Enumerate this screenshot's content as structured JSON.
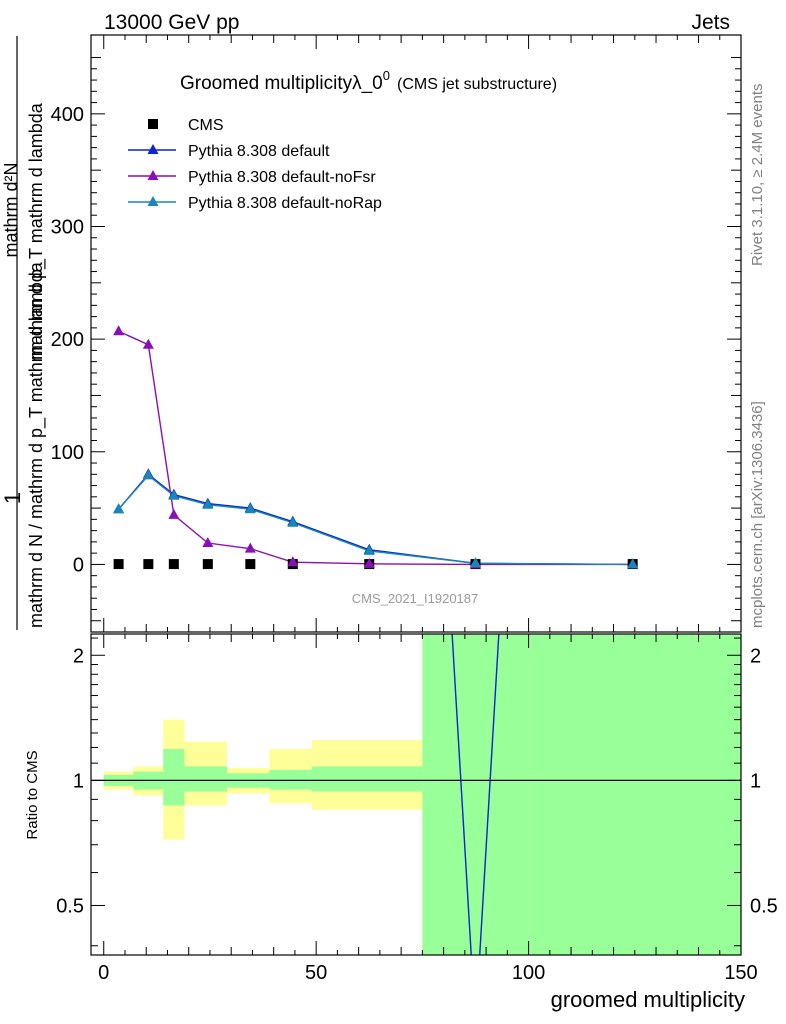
{
  "header": {
    "left": "13000 GeV pp",
    "right": "Jets"
  },
  "side_labels": {
    "rivet": "Rivet 3.1.10, ≥ 2.4M events",
    "mcplots": "mcplots.cern.ch [arXiv:1306.3436]"
  },
  "watermark": "CMS_2021_I1920187",
  "chart_data": [
    {
      "type": "line",
      "title": "Groomed multiplicityλ_0",
      "title_sup": "0",
      "title_note": "(CMS jet substructure)",
      "ylabel_num": "1",
      "ylabel_denom": "mathrm d N / mathrm d p_T mathrm d lambda",
      "ylabel_top": "mathrm d²N",
      "ylabel_bottom": "mathrm d p_T mathrm d lambda",
      "ylim": [
        -60,
        470
      ],
      "xlim": [
        -3,
        150
      ],
      "y_ticks": [
        0,
        100,
        200,
        300,
        400
      ],
      "legend_position": "top-left",
      "series": [
        {
          "name": "CMS",
          "color": "#000000",
          "marker": "square",
          "points": [
            [
              3.5,
              0.3
            ],
            [
              10.5,
              0.3
            ],
            [
              16.5,
              0.3
            ],
            [
              24.5,
              0.3
            ],
            [
              34.5,
              0.3
            ],
            [
              44.5,
              0.3
            ],
            [
              62.5,
              0.3
            ],
            [
              87.5,
              0.3
            ],
            [
              124.5,
              0.3
            ]
          ]
        },
        {
          "name": "Pythia 8.308 default",
          "color": "#0b24cc",
          "marker": "triangle",
          "points": [
            [
              3.5,
              49
            ],
            [
              10.5,
              80
            ],
            [
              16.5,
              62
            ],
            [
              24.5,
              54
            ],
            [
              34.5,
              50
            ],
            [
              44.5,
              38
            ],
            [
              62.5,
              13
            ],
            [
              87.5,
              1
            ],
            [
              124.5,
              0
            ]
          ]
        },
        {
          "name": "Pythia 8.308 default-noFsr",
          "color": "#8a0fb8",
          "marker": "triangle",
          "points": [
            [
              3.5,
              207
            ],
            [
              10.5,
              195
            ],
            [
              16.5,
              44
            ],
            [
              24.5,
              19
            ],
            [
              34.5,
              14
            ],
            [
              44.5,
              2
            ],
            [
              62.5,
              0.5
            ],
            [
              87.5,
              0
            ],
            [
              124.5,
              0
            ]
          ]
        },
        {
          "name": "Pythia 8.308 default-noRap",
          "color": "#1a86b8",
          "marker": "triangle",
          "points": [
            [
              3.5,
              49
            ],
            [
              10.5,
              79
            ],
            [
              16.5,
              61
            ],
            [
              24.5,
              53
            ],
            [
              34.5,
              49
            ],
            [
              44.5,
              37
            ],
            [
              62.5,
              12
            ],
            [
              87.5,
              1
            ],
            [
              124.5,
              0
            ]
          ]
        }
      ]
    },
    {
      "type": "area",
      "ylabel": "Ratio to CMS",
      "xlabel": "groomed multiplicity",
      "xlim": [
        -3,
        150
      ],
      "ylim": [
        0.38,
        2.25
      ],
      "y_ticks": [
        0.5,
        1,
        2
      ],
      "x_ticks": [
        0,
        50,
        100,
        150
      ],
      "colors": {
        "stat_band": "#99ff99",
        "total_band": "#ffff99",
        "reference_line": "#000000"
      },
      "bins": [
        {
          "x": [
            0,
            7
          ],
          "stat": [
            0.97,
            1.03
          ],
          "total": [
            0.95,
            1.05
          ]
        },
        {
          "x": [
            7,
            14
          ],
          "stat": [
            0.95,
            1.05
          ],
          "total": [
            0.92,
            1.08
          ]
        },
        {
          "x": [
            14,
            19
          ],
          "stat": [
            0.87,
            1.19
          ],
          "total": [
            0.72,
            1.4
          ]
        },
        {
          "x": [
            19,
            29
          ],
          "stat": [
            0.94,
            1.08
          ],
          "total": [
            0.87,
            1.24
          ]
        },
        {
          "x": [
            29,
            39
          ],
          "stat": [
            0.96,
            1.04
          ],
          "total": [
            0.93,
            1.07
          ]
        },
        {
          "x": [
            39,
            49
          ],
          "stat": [
            0.95,
            1.06
          ],
          "total": [
            0.88,
            1.19
          ]
        },
        {
          "x": [
            49,
            75
          ],
          "stat": [
            0.94,
            1.08
          ],
          "total": [
            0.85,
            1.25
          ]
        },
        {
          "x": [
            75,
            100
          ],
          "stat": [
            0.38,
            2.25
          ],
          "total": [
            0.38,
            2.25
          ]
        },
        {
          "x": [
            100,
            150
          ],
          "stat": [
            0.38,
            2.25
          ],
          "total": [
            0.38,
            2.25
          ]
        }
      ],
      "ratio_series": [
        {
          "name": "Pythia 8.308 default",
          "color": "#0b24cc",
          "points": [
            [
              82,
              2.25
            ],
            [
              86.5,
              0.38
            ]
          ]
        },
        {
          "name": "Pythia 8.308 default",
          "color": "#0b24cc",
          "points": [
            [
              88.5,
              0.38
            ],
            [
              93,
              2.25
            ]
          ]
        }
      ]
    }
  ]
}
